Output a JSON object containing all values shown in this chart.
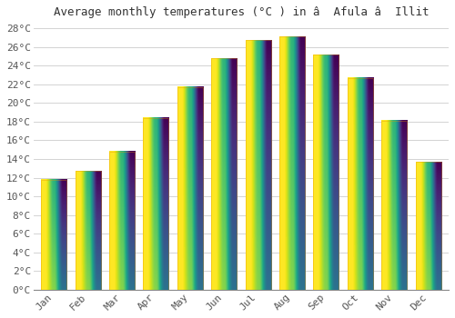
{
  "title": "Average monthly temperatures (°C ) in â  Afula â  Illit",
  "months": [
    "Jan",
    "Feb",
    "Mar",
    "Apr",
    "May",
    "Jun",
    "Jul",
    "Aug",
    "Sep",
    "Oct",
    "Nov",
    "Dec"
  ],
  "temperatures": [
    11.8,
    12.7,
    14.8,
    18.4,
    21.7,
    24.8,
    26.7,
    27.1,
    25.2,
    22.7,
    18.1,
    13.7
  ],
  "bar_color_top": "#FFA500",
  "bar_color_bottom": "#FFD060",
  "background_color": "#FFFFFF",
  "grid_color": "#CCCCCC",
  "title_fontsize": 9,
  "tick_label_fontsize": 8,
  "ytick_step": 2,
  "ymin": 0,
  "ymax": 28
}
